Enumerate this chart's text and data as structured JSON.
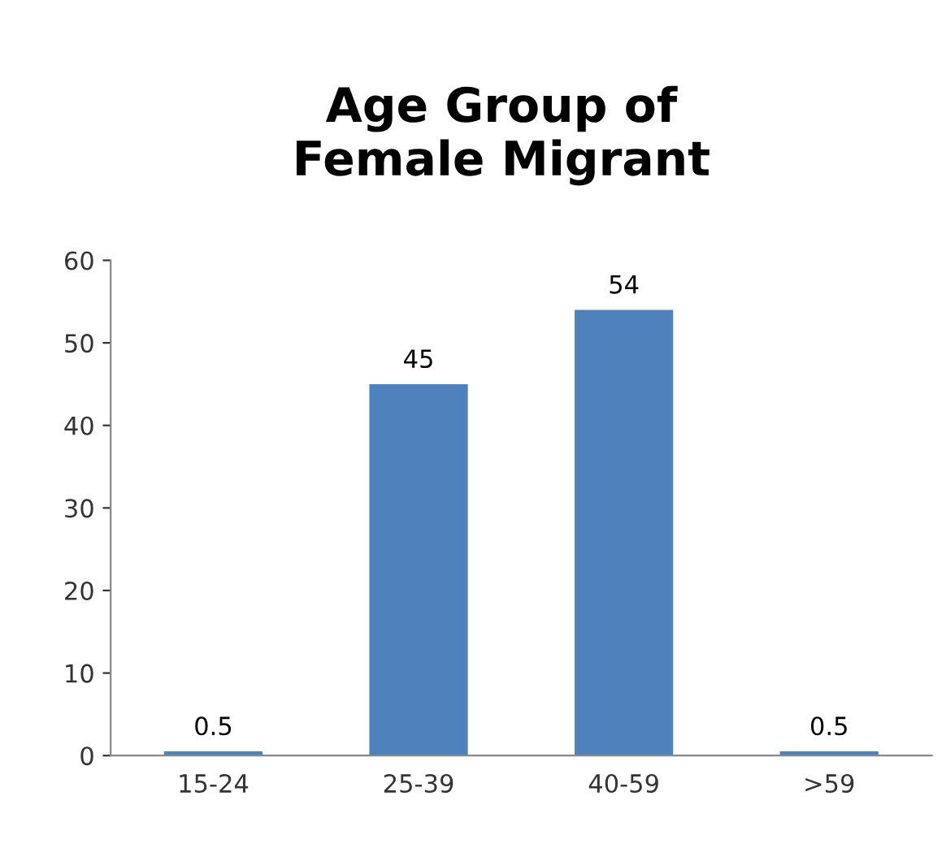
{
  "chart_data": {
    "type": "bar",
    "title": "Age Group of Female Migrant",
    "categories": [
      "15-24",
      "25-39",
      "40-59",
      ">59"
    ],
    "values": [
      0.5,
      45,
      54,
      0.5
    ],
    "color": "#4f81bd",
    "ylim": [
      0,
      60
    ],
    "yticks": [
      0,
      10,
      20,
      30,
      40,
      50,
      60
    ],
    "data_labels": true,
    "grid": false,
    "legend": false
  }
}
